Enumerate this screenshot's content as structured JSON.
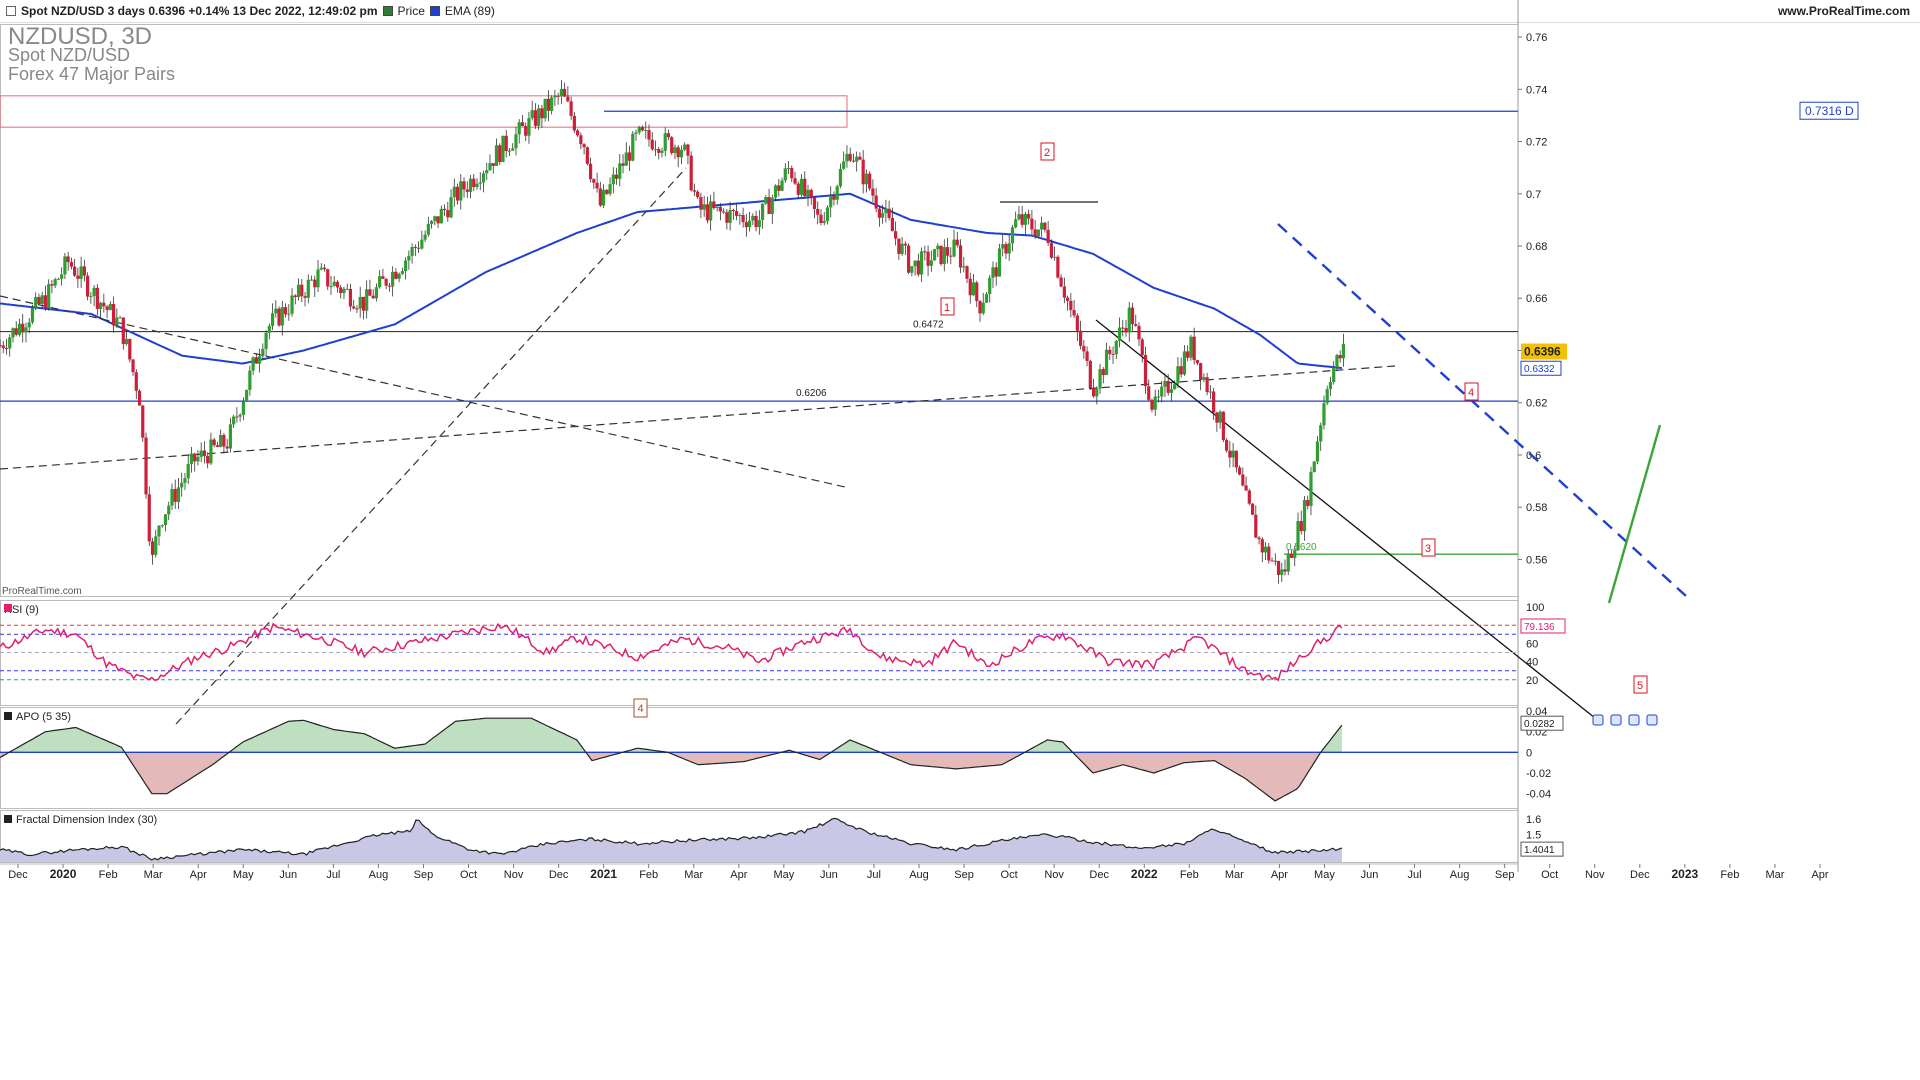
{
  "header": {
    "instrument_line": "Spot NZD/USD 3 days 0.6396 +0.14% 13 Dec 2022, 12:49:02 pm",
    "website": "www.ProRealTime.com",
    "legend": [
      {
        "label": "Price",
        "color": "#2e7d32"
      },
      {
        "label": "EMA (89)",
        "color": "#1f3fd1"
      }
    ],
    "symbol_title": "NZDUSD, 3D",
    "symbol_name": "Spot NZD/USD",
    "symbol_group": "Forex 47 Major Pairs",
    "watermark": "ProRealTime.com"
  },
  "colors": {
    "up": "#2e9e2e",
    "down": "#cc1f3a",
    "ema": "#1f3fd1",
    "rsi": "#e0206e",
    "apo_pos": "#bfe0c0",
    "apo_neg": "#e4b9b9",
    "fdi_fill": "#c8c8e6",
    "green_line": "#3aa63a",
    "highlight": "#f2c200"
  },
  "chart_data": [
    {
      "type": "line",
      "title": "NZDUSD, 3D",
      "x_ticks": [
        "Dec",
        "2020",
        "Feb",
        "Mar",
        "Apr",
        "May",
        "Jun",
        "Jul",
        "Aug",
        "Sep",
        "Oct",
        "Nov",
        "Dec",
        "2021",
        "Feb",
        "Mar",
        "Apr",
        "May",
        "Jun",
        "Jul",
        "Aug",
        "Sep",
        "Oct",
        "Nov",
        "Dec",
        "2022",
        "Feb",
        "Mar",
        "Apr",
        "May",
        "Jun",
        "Jul",
        "Aug",
        "Sep",
        "Oct",
        "Nov",
        "Dec",
        "2023",
        "Feb",
        "Mar",
        "Apr"
      ],
      "y_ticks": [
        "0.76",
        "0.74",
        "0.72",
        "0.7",
        "0.68",
        "0.66",
        "0.64",
        "0.62",
        "0.6",
        "0.58",
        "0.56"
      ],
      "ylim": [
        0.546,
        0.765
      ],
      "price_anchors": [
        {
          "t": 0,
          "p": 0.642
        },
        {
          "t": 0.03,
          "p": 0.66
        },
        {
          "t": 0.045,
          "p": 0.674
        },
        {
          "t": 0.08,
          "p": 0.649
        },
        {
          "t": 0.092,
          "p": 0.622
        },
        {
          "t": 0.1,
          "p": 0.558
        },
        {
          "t": 0.105,
          "p": 0.575
        },
        {
          "t": 0.128,
          "p": 0.598
        },
        {
          "t": 0.15,
          "p": 0.605
        },
        {
          "t": 0.175,
          "p": 0.648
        },
        {
          "t": 0.21,
          "p": 0.669
        },
        {
          "t": 0.24,
          "p": 0.658
        },
        {
          "t": 0.27,
          "p": 0.677
        },
        {
          "t": 0.3,
          "p": 0.699
        },
        {
          "t": 0.33,
          "p": 0.717
        },
        {
          "t": 0.37,
          "p": 0.738
        },
        {
          "t": 0.385,
          "p": 0.719
        },
        {
          "t": 0.395,
          "p": 0.695
        },
        {
          "t": 0.42,
          "p": 0.722
        },
        {
          "t": 0.45,
          "p": 0.718
        },
        {
          "t": 0.46,
          "p": 0.694
        },
        {
          "t": 0.5,
          "p": 0.69
        },
        {
          "t": 0.52,
          "p": 0.71
        },
        {
          "t": 0.54,
          "p": 0.689
        },
        {
          "t": 0.56,
          "p": 0.717
        },
        {
          "t": 0.575,
          "p": 0.7
        },
        {
          "t": 0.6,
          "p": 0.672
        },
        {
          "t": 0.63,
          "p": 0.679
        },
        {
          "t": 0.645,
          "p": 0.657
        },
        {
          "t": 0.67,
          "p": 0.69
        },
        {
          "t": 0.69,
          "p": 0.685
        },
        {
          "t": 0.72,
          "p": 0.626
        },
        {
          "t": 0.745,
          "p": 0.655
        },
        {
          "t": 0.76,
          "p": 0.617
        },
        {
          "t": 0.785,
          "p": 0.642
        },
        {
          "t": 0.8,
          "p": 0.619
        },
        {
          "t": 0.83,
          "p": 0.566
        },
        {
          "t": 0.845,
          "p": 0.554
        },
        {
          "t": 0.86,
          "p": 0.58
        },
        {
          "t": 0.875,
          "p": 0.63
        },
        {
          "t": 0.885,
          "p": 0.6396
        }
      ],
      "ema89_anchors": [
        {
          "t": 0,
          "p": 0.658
        },
        {
          "t": 0.06,
          "p": 0.654
        },
        {
          "t": 0.12,
          "p": 0.638
        },
        {
          "t": 0.16,
          "p": 0.635
        },
        {
          "t": 0.2,
          "p": 0.64
        },
        {
          "t": 0.26,
          "p": 0.65
        },
        {
          "t": 0.32,
          "p": 0.67
        },
        {
          "t": 0.38,
          "p": 0.685
        },
        {
          "t": 0.42,
          "p": 0.693
        },
        {
          "t": 0.46,
          "p": 0.695
        },
        {
          "t": 0.5,
          "p": 0.697
        },
        {
          "t": 0.56,
          "p": 0.7
        },
        {
          "t": 0.6,
          "p": 0.69
        },
        {
          "t": 0.65,
          "p": 0.685
        },
        {
          "t": 0.68,
          "p": 0.684
        },
        {
          "t": 0.72,
          "p": 0.677
        },
        {
          "t": 0.76,
          "p": 0.664
        },
        {
          "t": 0.8,
          "p": 0.656
        },
        {
          "t": 0.83,
          "p": 0.646
        },
        {
          "t": 0.855,
          "p": 0.635
        },
        {
          "t": 0.885,
          "p": 0.6332
        }
      ],
      "levels": [
        {
          "label": "0.7316 D",
          "value": 0.7316
        },
        {
          "label": "0.6472",
          "value": 0.6472
        },
        {
          "label": "0.6206",
          "value": 0.6206
        },
        {
          "label": "0.5620",
          "value": 0.562
        }
      ],
      "wave_labels": [
        "1",
        "2",
        "3",
        "4",
        "5"
      ],
      "box_label": "4",
      "price_tag": "0.6396",
      "ema_tag": "0.6332"
    },
    {
      "type": "line",
      "title": "RSI (9)",
      "y_ticks": [
        "100",
        "80",
        "60",
        "40",
        "20"
      ],
      "ylim": [
        0,
        100
      ],
      "levels": [
        80,
        70,
        50,
        30,
        20
      ],
      "last_value": "79.136"
    },
    {
      "type": "area",
      "title": "APO (5 35)",
      "y_ticks": [
        "0.04",
        "0.02",
        "0",
        "-0.02",
        "-0.04"
      ],
      "ylim": [
        -0.05,
        0.04
      ],
      "last_value": "0.0282"
    },
    {
      "type": "area",
      "title": "Fractal Dimension Index (30)",
      "y_ticks": [
        "1.6",
        "1.5"
      ],
      "ylim": [
        1.32,
        1.66
      ],
      "last_value": "1.4041"
    }
  ]
}
